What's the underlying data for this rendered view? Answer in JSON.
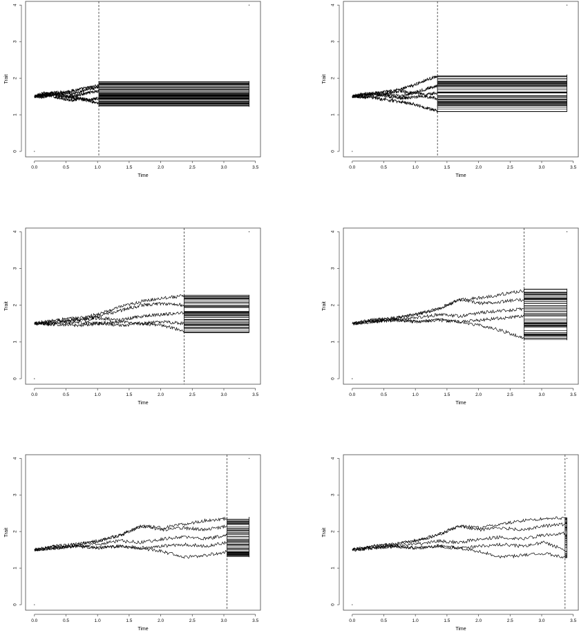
{
  "chart_data": [
    {
      "type": "line",
      "xlabel": "Time",
      "ylabel": "Trait",
      "xlim": [
        0,
        3.5
      ],
      "ylim": [
        0,
        4
      ],
      "x_ticks": [
        "0.0",
        "0.5",
        "1.0",
        "1.5",
        "2.0",
        "2.5",
        "3.0",
        "3.5"
      ],
      "y_ticks": [
        "0",
        "1",
        "2",
        "3",
        "4"
      ],
      "vline": 1.02,
      "t_end": 3.4,
      "start_value": 1.5,
      "lineages": [
        {
          "end": 1.02,
          "values": [
            1.5,
            1.55,
            1.6,
            1.62,
            1.65,
            1.7,
            1.75,
            1.8
          ]
        },
        {
          "end": 1.02,
          "values": [
            1.5,
            1.52,
            1.58,
            1.55,
            1.5,
            1.55,
            1.6,
            1.65
          ]
        },
        {
          "end": 1.02,
          "values": [
            1.5,
            1.55,
            1.5,
            1.45,
            1.4,
            1.42,
            1.38,
            1.3
          ]
        },
        {
          "end": 1.02,
          "values": [
            1.5,
            1.6,
            1.55,
            1.5,
            1.48,
            1.45,
            1.4,
            1.45
          ]
        },
        {
          "end": 1.02,
          "values": [
            1.5,
            1.48,
            1.55,
            1.6,
            1.58,
            1.62,
            1.7,
            1.75
          ]
        }
      ],
      "band_min": 1.22,
      "band_max": 1.92
    },
    {
      "type": "line",
      "xlabel": "Time",
      "ylabel": "Trait",
      "xlim": [
        0,
        3.5
      ],
      "ylim": [
        0,
        4
      ],
      "x_ticks": [
        "0.0",
        "0.5",
        "1.0",
        "1.5",
        "2.0",
        "2.5",
        "3.0",
        "3.5"
      ],
      "y_ticks": [
        "0",
        "1",
        "2",
        "3",
        "4"
      ],
      "vline": 1.35,
      "t_end": 3.4,
      "start_value": 1.5,
      "lineages": [
        {
          "end": 1.35,
          "values": [
            1.5,
            1.55,
            1.6,
            1.65,
            1.7,
            1.8,
            1.95,
            2.05
          ]
        },
        {
          "end": 1.35,
          "values": [
            1.5,
            1.55,
            1.6,
            1.55,
            1.5,
            1.6,
            1.7,
            1.8
          ]
        },
        {
          "end": 1.35,
          "values": [
            1.5,
            1.5,
            1.45,
            1.4,
            1.35,
            1.3,
            1.2,
            1.1
          ]
        },
        {
          "end": 1.35,
          "values": [
            1.5,
            1.58,
            1.55,
            1.5,
            1.45,
            1.48,
            1.5,
            1.45
          ]
        },
        {
          "end": 1.35,
          "values": [
            1.5,
            1.48,
            1.52,
            1.6,
            1.65,
            1.6,
            1.55,
            1.6
          ]
        }
      ],
      "band_min": 1.08,
      "band_max": 2.1
    },
    {
      "type": "line",
      "xlabel": "Time",
      "ylabel": "Trait",
      "xlim": [
        0,
        3.5
      ],
      "ylim": [
        0,
        4
      ],
      "x_ticks": [
        "0.0",
        "0.5",
        "1.0",
        "1.5",
        "2.0",
        "2.5",
        "3.0",
        "3.5"
      ],
      "y_ticks": [
        "0",
        "1",
        "2",
        "3",
        "4"
      ],
      "vline": 2.37,
      "t_end": 3.4,
      "start_value": 1.5,
      "lineages": [
        {
          "end": 2.37,
          "values": [
            1.5,
            1.6,
            1.65,
            1.75,
            1.95,
            2.1,
            2.2,
            2.25
          ]
        },
        {
          "end": 2.37,
          "values": [
            1.5,
            1.55,
            1.6,
            1.7,
            1.85,
            2.0,
            2.05,
            2.0
          ]
        },
        {
          "end": 2.37,
          "values": [
            1.5,
            1.55,
            1.6,
            1.65,
            1.6,
            1.7,
            1.75,
            1.8
          ]
        },
        {
          "end": 2.37,
          "values": [
            1.5,
            1.5,
            1.55,
            1.5,
            1.55,
            1.5,
            1.45,
            1.3
          ]
        },
        {
          "end": 2.37,
          "values": [
            1.5,
            1.48,
            1.45,
            1.5,
            1.45,
            1.5,
            1.55,
            1.5
          ]
        }
      ],
      "band_min": 1.25,
      "band_max": 2.28
    },
    {
      "type": "line",
      "xlabel": "Time",
      "ylabel": "Trait",
      "xlim": [
        0,
        3.5
      ],
      "ylim": [
        0,
        4
      ],
      "x_ticks": [
        "0.0",
        "0.5",
        "1.0",
        "1.5",
        "2.0",
        "2.5",
        "3.0",
        "3.5"
      ],
      "y_ticks": [
        "0",
        "1",
        "2",
        "3",
        "4"
      ],
      "vline": 2.72,
      "t_end": 3.4,
      "start_value": 1.5,
      "lineages": [
        {
          "end": 2.72,
          "values": [
            1.5,
            1.6,
            1.65,
            1.75,
            1.9,
            2.15,
            2.2,
            2.3,
            2.4
          ]
        },
        {
          "end": 2.72,
          "values": [
            1.5,
            1.6,
            1.65,
            1.75,
            1.9,
            2.15,
            2.05,
            2.1,
            2.15
          ]
        },
        {
          "end": 2.72,
          "values": [
            1.5,
            1.55,
            1.6,
            1.65,
            1.75,
            1.7,
            1.8,
            1.85,
            1.9
          ]
        },
        {
          "end": 2.72,
          "values": [
            1.5,
            1.55,
            1.6,
            1.55,
            1.6,
            1.55,
            1.6,
            1.65,
            1.7
          ]
        },
        {
          "end": 2.72,
          "values": [
            1.5,
            1.55,
            1.6,
            1.55,
            1.6,
            1.55,
            1.45,
            1.3,
            1.1
          ]
        }
      ],
      "band_min": 1.05,
      "band_max": 2.45
    },
    {
      "type": "line",
      "xlabel": "Time",
      "ylabel": "Trait",
      "xlim": [
        0,
        3.5
      ],
      "ylim": [
        0,
        4
      ],
      "x_ticks": [
        "0.0",
        "0.5",
        "1.0",
        "1.5",
        "2.0",
        "2.5",
        "3.0",
        "3.5"
      ],
      "y_ticks": [
        "0",
        "1",
        "2",
        "3",
        "4"
      ],
      "vline": 3.05,
      "t_end": 3.4,
      "start_value": 1.5,
      "lineages": [
        {
          "end": 3.05,
          "values": [
            1.5,
            1.6,
            1.65,
            1.75,
            1.9,
            2.15,
            2.1,
            2.2,
            2.3,
            2.35
          ]
        },
        {
          "end": 3.05,
          "values": [
            1.5,
            1.6,
            1.65,
            1.75,
            1.9,
            2.15,
            2.05,
            2.1,
            2.05,
            2.15
          ]
        },
        {
          "end": 3.05,
          "values": [
            1.5,
            1.55,
            1.6,
            1.65,
            1.75,
            1.7,
            1.8,
            1.85,
            1.8,
            1.9
          ]
        },
        {
          "end": 3.05,
          "values": [
            1.5,
            1.55,
            1.6,
            1.55,
            1.6,
            1.55,
            1.6,
            1.65,
            1.6,
            1.7
          ]
        },
        {
          "end": 3.05,
          "values": [
            1.5,
            1.55,
            1.6,
            1.55,
            1.6,
            1.55,
            1.45,
            1.3,
            1.35,
            1.45
          ]
        }
      ],
      "band_min": 1.3,
      "band_max": 2.4
    },
    {
      "type": "line",
      "xlabel": "Time",
      "ylabel": "Trait",
      "xlim": [
        0,
        3.5
      ],
      "ylim": [
        0,
        4
      ],
      "x_ticks": [
        "0.0",
        "0.5",
        "1.0",
        "1.5",
        "2.0",
        "2.5",
        "3.0",
        "3.5"
      ],
      "y_ticks": [
        "0",
        "1",
        "2",
        "3",
        "4"
      ],
      "vline": 3.37,
      "t_end": 3.4,
      "start_value": 1.5,
      "lineages": [
        {
          "end": 3.37,
          "values": [
            1.5,
            1.6,
            1.65,
            1.75,
            1.9,
            2.15,
            2.1,
            2.2,
            2.3,
            2.35,
            2.38
          ]
        },
        {
          "end": 3.37,
          "values": [
            1.5,
            1.6,
            1.65,
            1.75,
            1.9,
            2.15,
            2.05,
            2.1,
            2.05,
            2.15,
            2.2
          ]
        },
        {
          "end": 3.37,
          "values": [
            1.5,
            1.55,
            1.6,
            1.65,
            1.75,
            1.7,
            1.8,
            1.85,
            1.8,
            1.9,
            1.95
          ]
        },
        {
          "end": 3.37,
          "values": [
            1.5,
            1.55,
            1.6,
            1.55,
            1.6,
            1.55,
            1.6,
            1.65,
            1.6,
            1.7,
            1.5
          ]
        },
        {
          "end": 3.37,
          "values": [
            1.5,
            1.55,
            1.6,
            1.55,
            1.6,
            1.55,
            1.45,
            1.3,
            1.35,
            1.4,
            1.3
          ]
        }
      ],
      "band_min": 1.28,
      "band_max": 2.38
    }
  ]
}
